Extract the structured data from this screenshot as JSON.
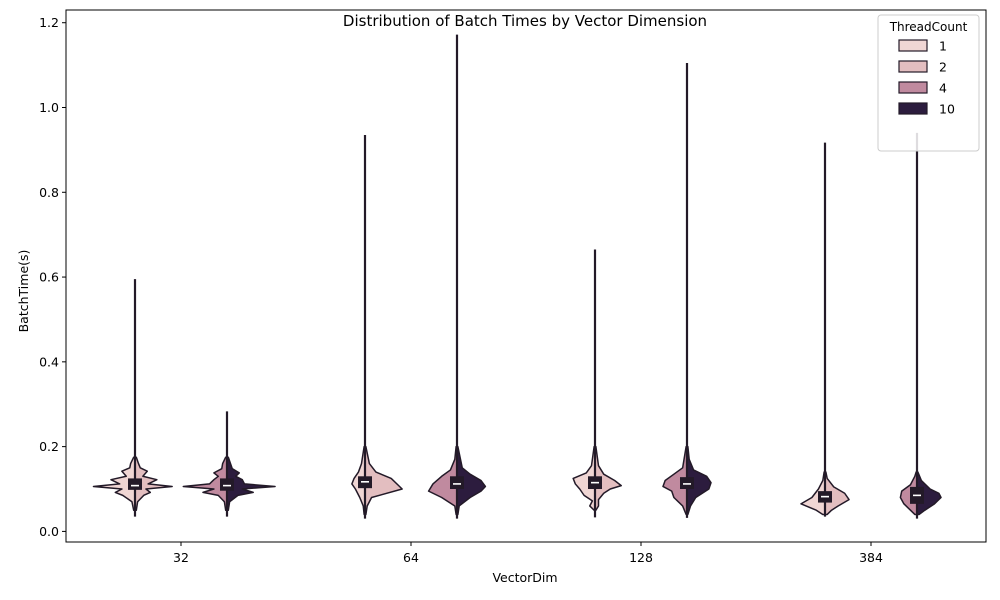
{
  "chart_data": {
    "type": "violin",
    "title": "Distribution of Batch Times by Vector Dimension",
    "xlabel": "VectorDim",
    "ylabel": "BatchTime(s)",
    "ylim": [
      -0.025,
      1.23
    ],
    "yticks": [
      0.0,
      0.2,
      0.4,
      0.6,
      0.8,
      1.0,
      1.2
    ],
    "ytick_labels": [
      "0.0",
      "0.2",
      "0.4",
      "0.6",
      "0.8",
      "1.0",
      "1.2"
    ],
    "categories": [
      "32",
      "64",
      "128",
      "384"
    ],
    "grid": false,
    "split": true,
    "legend": {
      "title": "ThreadCount",
      "placement": "top-right"
    },
    "series": [
      {
        "name": "1",
        "color": "#f0d6d4"
      },
      {
        "name": "2",
        "color": "#e3bec0"
      },
      {
        "name": "4",
        "color": "#c08a9f"
      },
      {
        "name": "10",
        "color": "#2c1c3e"
      }
    ],
    "violins": [
      {
        "category": "32",
        "slot": 0,
        "left": "1",
        "right": "2",
        "min": 0.035,
        "max": 0.595,
        "q1": 0.098,
        "median": 0.108,
        "q3": 0.125,
        "left_density": [
          [
            0.05,
            0.03
          ],
          [
            0.07,
            0.07
          ],
          [
            0.085,
            0.28
          ],
          [
            0.092,
            0.45
          ],
          [
            0.1,
            0.3
          ],
          [
            0.106,
            0.95
          ],
          [
            0.112,
            0.35
          ],
          [
            0.122,
            0.55
          ],
          [
            0.13,
            0.2
          ],
          [
            0.142,
            0.3
          ],
          [
            0.15,
            0.12
          ],
          [
            0.16,
            0.1
          ],
          [
            0.175,
            0.03
          ]
        ],
        "right_density": [
          [
            0.05,
            0.03
          ],
          [
            0.07,
            0.06
          ],
          [
            0.085,
            0.2
          ],
          [
            0.092,
            0.35
          ],
          [
            0.1,
            0.25
          ],
          [
            0.106,
            0.85
          ],
          [
            0.112,
            0.3
          ],
          [
            0.122,
            0.5
          ],
          [
            0.13,
            0.18
          ],
          [
            0.142,
            0.28
          ],
          [
            0.15,
            0.12
          ],
          [
            0.16,
            0.08
          ],
          [
            0.175,
            0.03
          ]
        ]
      },
      {
        "category": "32",
        "slot": 1,
        "left": "4",
        "right": "10",
        "min": 0.035,
        "max": 0.283,
        "q1": 0.096,
        "median": 0.108,
        "q3": 0.125,
        "left_density": [
          [
            0.05,
            0.03
          ],
          [
            0.07,
            0.06
          ],
          [
            0.085,
            0.2
          ],
          [
            0.092,
            0.55
          ],
          [
            0.1,
            0.3
          ],
          [
            0.106,
            1.0
          ],
          [
            0.112,
            0.4
          ],
          [
            0.122,
            0.3
          ],
          [
            0.13,
            0.2
          ],
          [
            0.138,
            0.3
          ],
          [
            0.148,
            0.12
          ],
          [
            0.16,
            0.1
          ],
          [
            0.175,
            0.03
          ]
        ],
        "right_density": [
          [
            0.05,
            0.03
          ],
          [
            0.07,
            0.06
          ],
          [
            0.085,
            0.25
          ],
          [
            0.092,
            0.6
          ],
          [
            0.1,
            0.35
          ],
          [
            0.106,
            1.1
          ],
          [
            0.112,
            0.4
          ],
          [
            0.122,
            0.35
          ],
          [
            0.13,
            0.2
          ],
          [
            0.138,
            0.28
          ],
          [
            0.148,
            0.12
          ],
          [
            0.16,
            0.08
          ],
          [
            0.175,
            0.03
          ]
        ]
      },
      {
        "category": "64",
        "slot": 0,
        "left": "1",
        "right": "2",
        "min": 0.03,
        "max": 0.935,
        "q1": 0.102,
        "median": 0.117,
        "q3": 0.13,
        "left_density": [
          [
            0.04,
            0.02
          ],
          [
            0.06,
            0.04
          ],
          [
            0.08,
            0.12
          ],
          [
            0.1,
            0.22
          ],
          [
            0.112,
            0.3
          ],
          [
            0.125,
            0.25
          ],
          [
            0.14,
            0.15
          ],
          [
            0.16,
            0.08
          ],
          [
            0.2,
            0.02
          ]
        ],
        "right_density": [
          [
            0.04,
            0.02
          ],
          [
            0.06,
            0.05
          ],
          [
            0.08,
            0.15
          ],
          [
            0.1,
            0.85
          ],
          [
            0.11,
            0.75
          ],
          [
            0.125,
            0.6
          ],
          [
            0.14,
            0.25
          ],
          [
            0.16,
            0.1
          ],
          [
            0.2,
            0.02
          ]
        ]
      },
      {
        "category": "64",
        "slot": 1,
        "left": "4",
        "right": "10",
        "min": 0.03,
        "max": 1.172,
        "q1": 0.1,
        "median": 0.112,
        "q3": 0.13,
        "left_density": [
          [
            0.04,
            0.02
          ],
          [
            0.06,
            0.05
          ],
          [
            0.08,
            0.35
          ],
          [
            0.095,
            0.65
          ],
          [
            0.112,
            0.55
          ],
          [
            0.13,
            0.35
          ],
          [
            0.145,
            0.15
          ],
          [
            0.17,
            0.05
          ],
          [
            0.2,
            0.02
          ]
        ],
        "right_density": [
          [
            0.04,
            0.02
          ],
          [
            0.06,
            0.05
          ],
          [
            0.08,
            0.3
          ],
          [
            0.095,
            0.55
          ],
          [
            0.106,
            0.65
          ],
          [
            0.12,
            0.55
          ],
          [
            0.135,
            0.3
          ],
          [
            0.15,
            0.12
          ],
          [
            0.2,
            0.02
          ]
        ]
      },
      {
        "category": "128",
        "slot": 0,
        "left": "1",
        "right": "2",
        "min": 0.033,
        "max": 0.665,
        "q1": 0.1,
        "median": 0.115,
        "q3": 0.13,
        "left_density": [
          [
            0.05,
            0.02
          ],
          [
            0.06,
            0.12
          ],
          [
            0.072,
            0.06
          ],
          [
            0.085,
            0.25
          ],
          [
            0.1,
            0.35
          ],
          [
            0.112,
            0.45
          ],
          [
            0.125,
            0.5
          ],
          [
            0.138,
            0.2
          ],
          [
            0.155,
            0.08
          ],
          [
            0.2,
            0.02
          ]
        ],
        "right_density": [
          [
            0.05,
            0.02
          ],
          [
            0.06,
            0.08
          ],
          [
            0.075,
            0.08
          ],
          [
            0.09,
            0.2
          ],
          [
            0.1,
            0.35
          ],
          [
            0.108,
            0.6
          ],
          [
            0.12,
            0.45
          ],
          [
            0.135,
            0.2
          ],
          [
            0.155,
            0.08
          ],
          [
            0.2,
            0.02
          ]
        ]
      },
      {
        "category": "128",
        "slot": 1,
        "left": "4",
        "right": "10",
        "min": 0.032,
        "max": 1.105,
        "q1": 0.1,
        "median": 0.112,
        "q3": 0.128,
        "left_density": [
          [
            0.04,
            0.02
          ],
          [
            0.06,
            0.1
          ],
          [
            0.08,
            0.3
          ],
          [
            0.095,
            0.35
          ],
          [
            0.106,
            0.55
          ],
          [
            0.12,
            0.5
          ],
          [
            0.135,
            0.3
          ],
          [
            0.15,
            0.1
          ],
          [
            0.2,
            0.02
          ]
        ],
        "right_density": [
          [
            0.04,
            0.02
          ],
          [
            0.06,
            0.08
          ],
          [
            0.08,
            0.2
          ],
          [
            0.1,
            0.5
          ],
          [
            0.115,
            0.55
          ],
          [
            0.13,
            0.45
          ],
          [
            0.145,
            0.15
          ],
          [
            0.17,
            0.05
          ],
          [
            0.2,
            0.02
          ]
        ]
      },
      {
        "category": "384",
        "slot": 0,
        "left": "1",
        "right": "2",
        "min": 0.035,
        "max": 0.917,
        "q1": 0.068,
        "median": 0.082,
        "q3": 0.095,
        "left_density": [
          [
            0.04,
            0.05
          ],
          [
            0.05,
            0.2
          ],
          [
            0.065,
            0.55
          ],
          [
            0.08,
            0.3
          ],
          [
            0.1,
            0.15
          ],
          [
            0.12,
            0.05
          ],
          [
            0.14,
            0.02
          ]
        ],
        "right_density": [
          [
            0.04,
            0.05
          ],
          [
            0.05,
            0.15
          ],
          [
            0.06,
            0.3
          ],
          [
            0.075,
            0.55
          ],
          [
            0.09,
            0.45
          ],
          [
            0.105,
            0.2
          ],
          [
            0.125,
            0.05
          ],
          [
            0.14,
            0.02
          ]
        ]
      },
      {
        "category": "384",
        "slot": 1,
        "left": "4",
        "right": "10",
        "min": 0.03,
        "max": 0.94,
        "q1": 0.065,
        "median": 0.085,
        "q3": 0.105,
        "left_density": [
          [
            0.04,
            0.05
          ],
          [
            0.05,
            0.15
          ],
          [
            0.065,
            0.3
          ],
          [
            0.08,
            0.38
          ],
          [
            0.095,
            0.35
          ],
          [
            0.11,
            0.15
          ],
          [
            0.13,
            0.05
          ],
          [
            0.14,
            0.02
          ]
        ],
        "right_density": [
          [
            0.04,
            0.05
          ],
          [
            0.05,
            0.18
          ],
          [
            0.065,
            0.4
          ],
          [
            0.08,
            0.55
          ],
          [
            0.09,
            0.5
          ],
          [
            0.1,
            0.3
          ],
          [
            0.12,
            0.1
          ],
          [
            0.14,
            0.02
          ]
        ]
      }
    ]
  }
}
